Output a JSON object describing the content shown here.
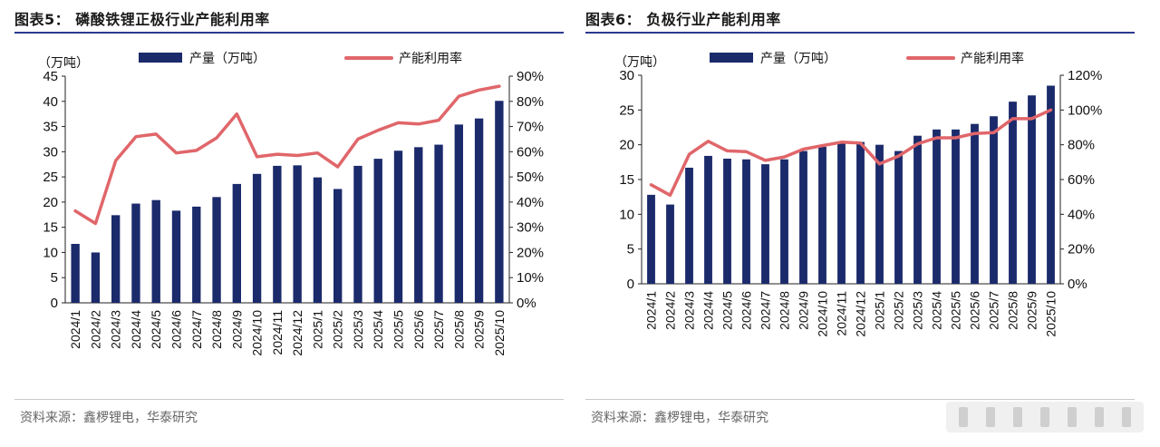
{
  "panels": [
    {
      "title": "图表5： 磷酸铁锂正极行业产能利用率",
      "source": "资料来源：鑫椤锂电，华泰研究"
    },
    {
      "title": "图表6： 负极行业产能利用率",
      "source": "资料来源：鑫椤锂电，华泰研究"
    }
  ],
  "chart_data": [
    {
      "type": "bar",
      "title": "图表5： 磷酸铁锂正极行业产能利用率",
      "unit_label": "（万吨）",
      "categories": [
        "2024/1",
        "2024/2",
        "2024/3",
        "2024/4",
        "2024/5",
        "2024/6",
        "2024/7",
        "2024/8",
        "2024/9",
        "2024/10",
        "2024/11",
        "2024/12",
        "2025/1",
        "2025/2",
        "2025/3",
        "2025/4",
        "2025/5",
        "2025/6",
        "2025/7",
        "2025/8",
        "2025/9",
        "2025/10"
      ],
      "series": [
        {
          "name": "产量（万吨）",
          "type": "bar",
          "axis": "left",
          "color": "#1b2a6b",
          "values": [
            11.7,
            10.0,
            17.4,
            19.7,
            20.4,
            18.3,
            19.1,
            21.0,
            23.6,
            25.6,
            27.2,
            27.3,
            24.9,
            22.6,
            27.2,
            28.6,
            30.2,
            30.9,
            31.4,
            35.4,
            36.6,
            40.1
          ]
        },
        {
          "name": "产能利用率",
          "type": "line",
          "axis": "right",
          "color": "#e0666a",
          "values": [
            36.5,
            31.5,
            56.5,
            66.0,
            67.0,
            59.5,
            60.5,
            65.5,
            75.0,
            58.0,
            59.0,
            58.5,
            59.5,
            54.0,
            65.0,
            68.5,
            71.5,
            71.0,
            72.5,
            82.0,
            84.5,
            86.0
          ]
        }
      ],
      "ylim": [
        0,
        45
      ],
      "yticks": [
        0,
        5,
        10,
        15,
        20,
        25,
        30,
        35,
        40,
        45
      ],
      "y2lim": [
        0,
        90
      ],
      "y2ticks": [
        "0%",
        "10%",
        "20%",
        "30%",
        "40%",
        "50%",
        "60%",
        "70%",
        "80%",
        "90%"
      ],
      "legend": "top",
      "grid": false
    },
    {
      "type": "bar",
      "title": "图表6： 负极行业产能利用率",
      "unit_label": "（万吨）",
      "categories": [
        "2024/1",
        "2024/2",
        "2024/3",
        "2024/4",
        "2024/5",
        "2024/6",
        "2024/7",
        "2024/8",
        "2024/9",
        "2024/10",
        "2024/11",
        "2024/12",
        "2025/1",
        "2025/2",
        "2025/3",
        "2025/4",
        "2025/5",
        "2025/6",
        "2025/7",
        "2025/8",
        "2025/9",
        "2025/10"
      ],
      "series": [
        {
          "name": "产量（万吨）",
          "type": "bar",
          "axis": "left",
          "color": "#1b2a6b",
          "values": [
            12.8,
            11.4,
            16.7,
            18.4,
            18.0,
            17.9,
            17.2,
            17.9,
            19.1,
            19.7,
            20.3,
            20.4,
            20.0,
            19.1,
            21.3,
            22.2,
            22.2,
            23.0,
            24.1,
            26.2,
            27.1,
            28.5
          ]
        },
        {
          "name": "产能利用率",
          "type": "line",
          "axis": "right",
          "color": "#e0666a",
          "values": [
            57.0,
            51.0,
            74.5,
            82.0,
            76.5,
            76.0,
            71.0,
            73.0,
            77.5,
            79.5,
            81.5,
            81.0,
            69.0,
            73.5,
            80.5,
            84.0,
            84.0,
            86.5,
            87.0,
            95.0,
            95.0,
            100.0
          ]
        }
      ],
      "ylim": [
        0,
        30
      ],
      "yticks": [
        0,
        5,
        10,
        15,
        20,
        25,
        30
      ],
      "y2lim": [
        0,
        120
      ],
      "y2ticks": [
        "0%",
        "20%",
        "40%",
        "60%",
        "80%",
        "100%",
        "120%"
      ],
      "legend": "top",
      "grid": false
    }
  ]
}
